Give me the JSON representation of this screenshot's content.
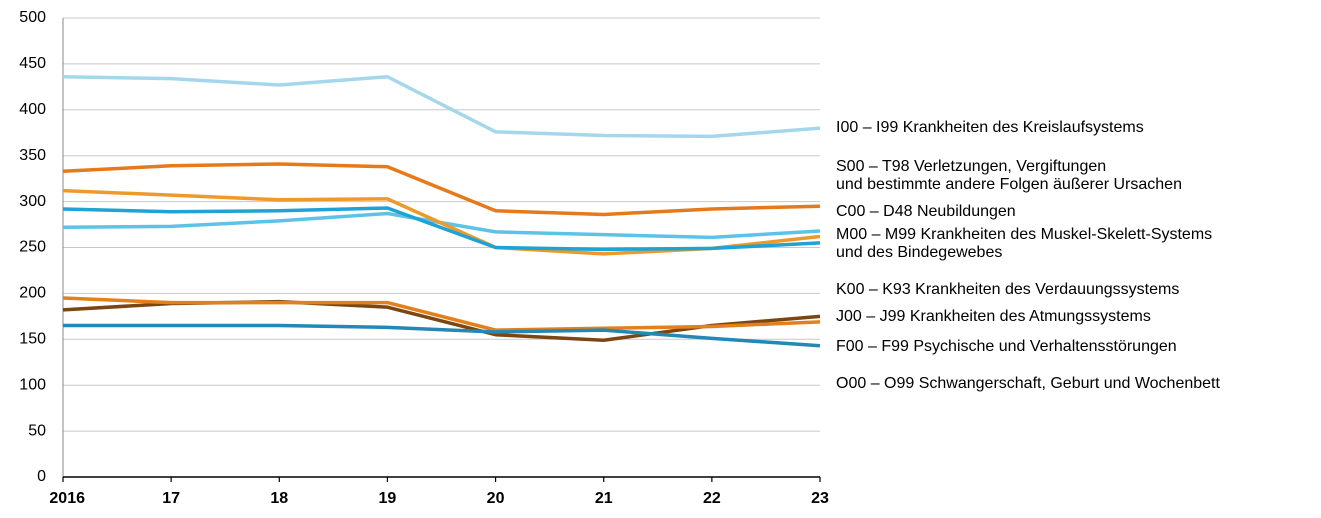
{
  "chart_data": {
    "type": "line",
    "categories": [
      "2016",
      "17",
      "18",
      "19",
      "20",
      "21",
      "22",
      "23"
    ],
    "series": [
      {
        "name": "I00 – I99 Krankheiten des Kreislaufsystems",
        "color": "#a5d7ec",
        "values": [
          436,
          434,
          427,
          436,
          376,
          372,
          371,
          380
        ]
      },
      {
        "name": "S00 – T98 Verletzungen, Vergiftungen\nund bestimmte andere Folgen äußerer Ursachen",
        "color": "#e67a1a",
        "values": [
          333,
          339,
          341,
          338,
          290,
          286,
          292,
          295
        ]
      },
      {
        "name": "C00 – D48 Neubildungen",
        "color": "#5cc3e8",
        "values": [
          272,
          273,
          279,
          287,
          267,
          264,
          261,
          268
        ]
      },
      {
        "name": "M00 – M99 Krankheiten des Muskel-Skelett-Systems\nund des Bindegewebes",
        "color": "#ee9a2a",
        "values": [
          312,
          307,
          302,
          303,
          250,
          243,
          249,
          262
        ]
      },
      {
        "name": "K00 – K93 Krankheiten des Verdauungssystems",
        "color": "#1fa3d5",
        "values": [
          292,
          289,
          290,
          293,
          250,
          248,
          249,
          255
        ]
      },
      {
        "name": "J00 – J99 Krankheiten des Atmungssystems",
        "color": "#7a4712",
        "values": [
          182,
          189,
          191,
          185,
          155,
          149,
          165,
          175
        ]
      },
      {
        "name": "F00 – F99 Psychische und Verhaltensstörungen",
        "color": "#e4801c",
        "values": [
          195,
          190,
          190,
          190,
          160,
          162,
          164,
          169
        ]
      },
      {
        "name": "O00 – O99 Schwangerschaft, Geburt und Wochenbett",
        "color": "#2288b6",
        "values": [
          165,
          165,
          165,
          163,
          158,
          160,
          151,
          143
        ]
      }
    ],
    "ylim": [
      0,
      500
    ],
    "yticks": [
      0,
      50,
      100,
      150,
      200,
      250,
      300,
      350,
      400,
      450,
      500
    ],
    "grid": true
  }
}
